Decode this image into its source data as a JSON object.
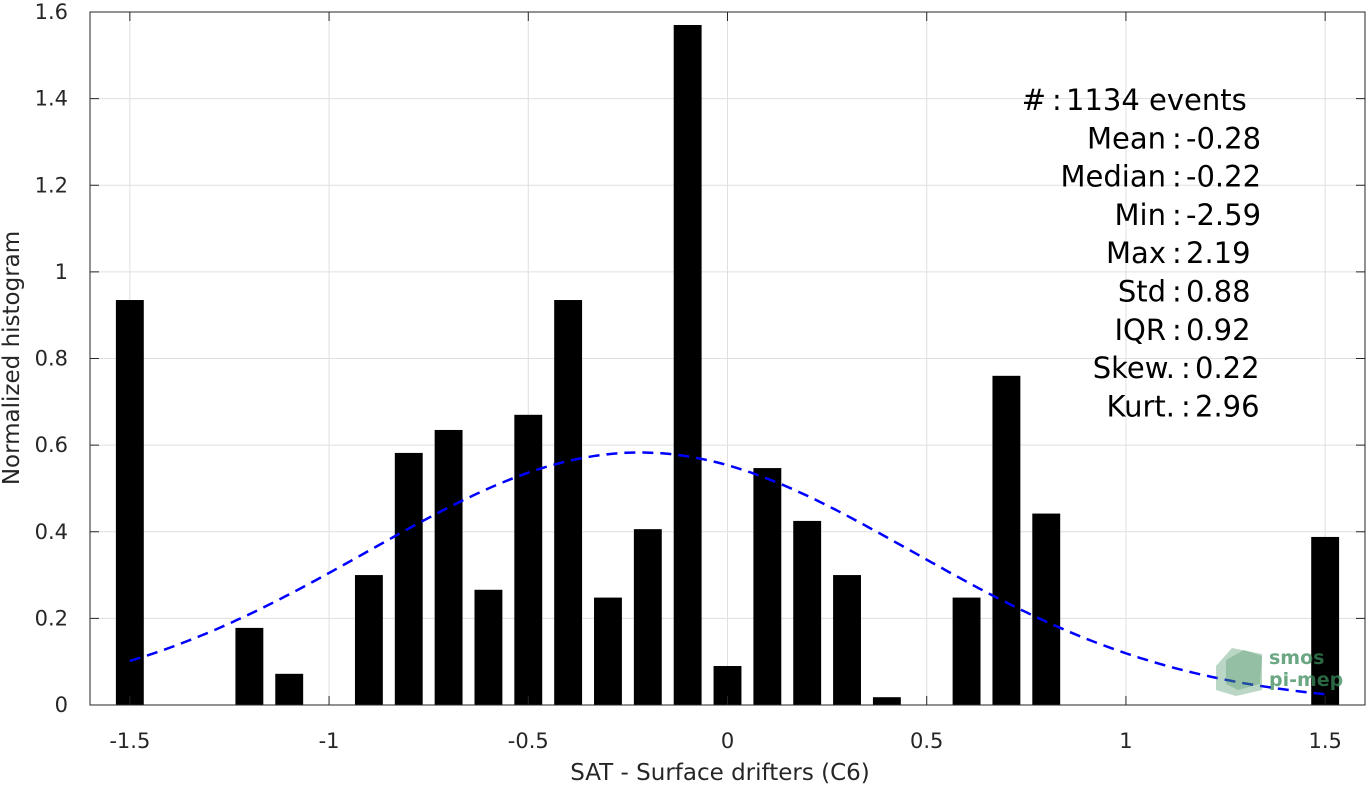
{
  "chart_data": {
    "type": "bar",
    "xlabel": "SAT - Surface drifters (C6)",
    "ylabel": "Normalized histogram",
    "xlim": [
      -1.6,
      1.6
    ],
    "ylim": [
      0,
      1.6
    ],
    "grid": true,
    "x_ticks": [
      -1.5,
      -1,
      -0.5,
      0,
      0.5,
      1,
      1.5
    ],
    "x_tick_labels": [
      "-1.5",
      "-1",
      "-0.5",
      "0",
      "0.5",
      "1",
      "1.5"
    ],
    "y_ticks": [
      0,
      0.2,
      0.4,
      0.6,
      0.8,
      1,
      1.2,
      1.4,
      1.6
    ],
    "y_tick_labels": [
      "0",
      "0.2",
      "0.4",
      "0.6",
      "0.8",
      "1",
      "1.2",
      "1.4",
      "1.6"
    ],
    "bar_width": 0.07,
    "bar_color": "#000000",
    "bars": [
      {
        "x": -1.5,
        "y": 0.935
      },
      {
        "x": -1.2,
        "y": 0.178
      },
      {
        "x": -1.1,
        "y": 0.072
      },
      {
        "x": -0.9,
        "y": 0.3
      },
      {
        "x": -0.8,
        "y": 0.582
      },
      {
        "x": -0.7,
        "y": 0.635
      },
      {
        "x": -0.6,
        "y": 0.266
      },
      {
        "x": -0.5,
        "y": 0.67
      },
      {
        "x": -0.4,
        "y": 0.935
      },
      {
        "x": -0.3,
        "y": 0.248
      },
      {
        "x": -0.2,
        "y": 0.406
      },
      {
        "x": -0.1,
        "y": 1.57
      },
      {
        "x": 0.0,
        "y": 0.09
      },
      {
        "x": 0.1,
        "y": 0.547
      },
      {
        "x": 0.2,
        "y": 0.425
      },
      {
        "x": 0.3,
        "y": 0.3
      },
      {
        "x": 0.4,
        "y": 0.018
      },
      {
        "x": 0.6,
        "y": 0.248
      },
      {
        "x": 0.7,
        "y": 0.76
      },
      {
        "x": 0.8,
        "y": 0.442
      },
      {
        "x": 1.5,
        "y": 0.388
      }
    ],
    "fit_curve": {
      "style": "dashed",
      "color": "#0000ff",
      "distribution": "normal",
      "mean": -0.22,
      "std": 0.685,
      "peak": 0.583,
      "x_range": [
        -1.5,
        1.5
      ]
    },
    "stats": [
      {
        "label": "#  ",
        "value": "1134 events"
      },
      {
        "label": "Mean ",
        "value": "-0.28"
      },
      {
        "label": "Median ",
        "value": "-0.22"
      },
      {
        "label": "Min ",
        "value": "-2.59"
      },
      {
        "label": "Max ",
        "value": "2.19"
      },
      {
        "label": "Std ",
        "value": "0.88"
      },
      {
        "label": "IQR ",
        "value": "0.92"
      },
      {
        "label": "Skew. ",
        "value": "0.22"
      },
      {
        "label": "Kurt. ",
        "value": "2.96"
      }
    ],
    "watermark": {
      "line1": "smos",
      "line2": "pi-mep",
      "color": "#3a8a5a"
    }
  }
}
